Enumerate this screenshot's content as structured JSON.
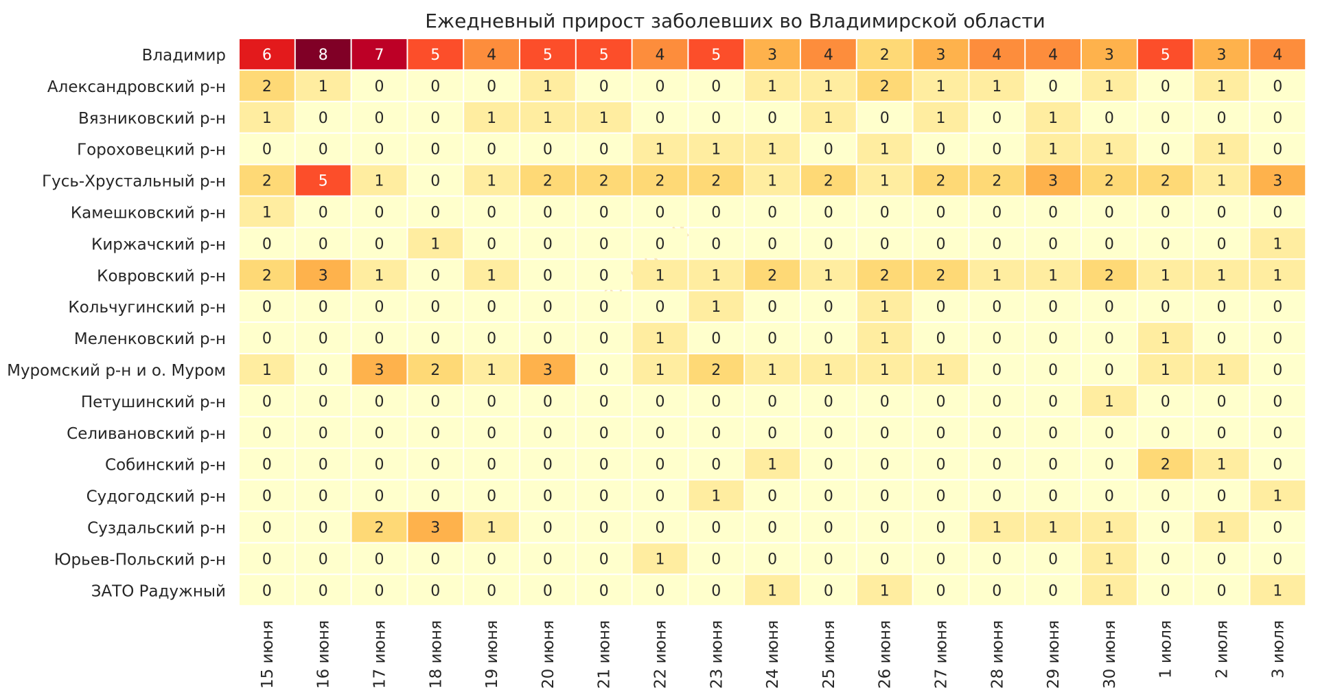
{
  "chart_data": {
    "type": "heatmap",
    "title": "Ежедневный прирост заболевших во Владимирской области",
    "watermark": "provladimir",
    "xlabel": "",
    "ylabel": "",
    "columns": [
      "15 июня",
      "16 июня",
      "17 июня",
      "18 июня",
      "19 июня",
      "20 июня",
      "21 июня",
      "22 июня",
      "23 июня",
      "24 июня",
      "25 июня",
      "26 июня",
      "27 июня",
      "28 июня",
      "29 июня",
      "30 июня",
      "1 июля",
      "2 июля",
      "3 июля"
    ],
    "rows": [
      {
        "name": "Владимир",
        "values": [
          6,
          8,
          7,
          5,
          4,
          5,
          5,
          4,
          5,
          3,
          4,
          2,
          3,
          4,
          4,
          3,
          5,
          3,
          4
        ]
      },
      {
        "name": "Александровский р-н",
        "values": [
          2,
          1,
          0,
          0,
          0,
          1,
          0,
          0,
          0,
          1,
          1,
          2,
          1,
          1,
          0,
          1,
          0,
          1,
          0
        ]
      },
      {
        "name": "Вязниковский р-н",
        "values": [
          1,
          0,
          0,
          0,
          1,
          1,
          1,
          0,
          0,
          0,
          1,
          0,
          1,
          0,
          1,
          0,
          0,
          0,
          0
        ]
      },
      {
        "name": "Гороховецкий р-н",
        "values": [
          0,
          0,
          0,
          0,
          0,
          0,
          0,
          1,
          1,
          1,
          0,
          1,
          0,
          0,
          1,
          1,
          0,
          1,
          0
        ]
      },
      {
        "name": "Гусь-Хрустальный р-н",
        "values": [
          2,
          5,
          1,
          0,
          1,
          2,
          2,
          2,
          2,
          1,
          2,
          1,
          2,
          2,
          3,
          2,
          2,
          1,
          3
        ]
      },
      {
        "name": "Камешковский р-н",
        "values": [
          1,
          0,
          0,
          0,
          0,
          0,
          0,
          0,
          0,
          0,
          0,
          0,
          0,
          0,
          0,
          0,
          0,
          0,
          0
        ]
      },
      {
        "name": "Киржачский р-н",
        "values": [
          0,
          0,
          0,
          1,
          0,
          0,
          0,
          0,
          0,
          0,
          0,
          0,
          0,
          0,
          0,
          0,
          0,
          0,
          1
        ]
      },
      {
        "name": "Ковровский р-н",
        "values": [
          2,
          3,
          1,
          0,
          1,
          0,
          0,
          1,
          1,
          2,
          1,
          2,
          2,
          1,
          1,
          2,
          1,
          1,
          1
        ]
      },
      {
        "name": "Кольчугинский р-н",
        "values": [
          0,
          0,
          0,
          0,
          0,
          0,
          0,
          0,
          1,
          0,
          0,
          1,
          0,
          0,
          0,
          0,
          0,
          0,
          0
        ]
      },
      {
        "name": "Меленковский р-н",
        "values": [
          0,
          0,
          0,
          0,
          0,
          0,
          0,
          1,
          0,
          0,
          0,
          1,
          0,
          0,
          0,
          0,
          1,
          0,
          0
        ]
      },
      {
        "name": "Муромский р-н и о. Муром",
        "values": [
          1,
          0,
          3,
          2,
          1,
          3,
          0,
          1,
          2,
          1,
          1,
          1,
          1,
          0,
          0,
          0,
          1,
          1,
          0
        ]
      },
      {
        "name": "Петушинский р-н",
        "values": [
          0,
          0,
          0,
          0,
          0,
          0,
          0,
          0,
          0,
          0,
          0,
          0,
          0,
          0,
          0,
          1,
          0,
          0,
          0
        ]
      },
      {
        "name": "Селивановский р-н",
        "values": [
          0,
          0,
          0,
          0,
          0,
          0,
          0,
          0,
          0,
          0,
          0,
          0,
          0,
          0,
          0,
          0,
          0,
          0,
          0
        ]
      },
      {
        "name": "Собинский р-н",
        "values": [
          0,
          0,
          0,
          0,
          0,
          0,
          0,
          0,
          0,
          1,
          0,
          0,
          0,
          0,
          0,
          0,
          2,
          1,
          0
        ]
      },
      {
        "name": "Судогодский р-н",
        "values": [
          0,
          0,
          0,
          0,
          0,
          0,
          0,
          0,
          1,
          0,
          0,
          0,
          0,
          0,
          0,
          0,
          0,
          0,
          1
        ]
      },
      {
        "name": "Суздальский р-н",
        "values": [
          0,
          0,
          2,
          3,
          1,
          0,
          0,
          0,
          0,
          0,
          0,
          0,
          0,
          1,
          1,
          1,
          0,
          1,
          0
        ]
      },
      {
        "name": "Юрьев-Польский р-н",
        "values": [
          0,
          0,
          0,
          0,
          0,
          0,
          0,
          1,
          0,
          0,
          0,
          0,
          0,
          0,
          0,
          1,
          0,
          0,
          0
        ]
      },
      {
        "name": "ЗАТО Радужный",
        "values": [
          0,
          0,
          0,
          0,
          0,
          0,
          0,
          0,
          0,
          1,
          0,
          1,
          0,
          0,
          0,
          1,
          0,
          0,
          1
        ]
      }
    ],
    "color_scale": {
      "name": "YlOrRd",
      "min": 0,
      "max": 8,
      "stops": [
        "#ffffcc",
        "#ffeda0",
        "#fed976",
        "#feb24c",
        "#fd8d3c",
        "#fc4e2a",
        "#e31a1c",
        "#bd0026",
        "#800026"
      ]
    },
    "text_dark": "#262626",
    "text_light": "#ffffff",
    "grid_color": "#ffffff"
  }
}
